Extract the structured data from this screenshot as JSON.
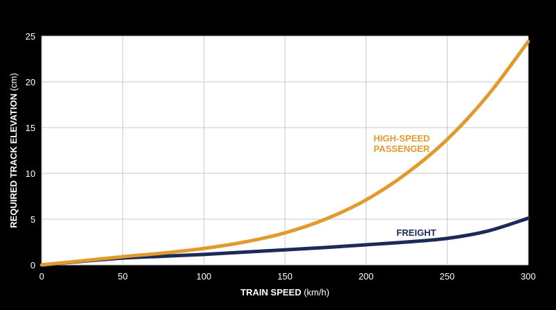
{
  "chart_data": {
    "type": "line",
    "xlabel": "TRAIN SPEED",
    "xlabel_unit": "(km/h)",
    "ylabel": "REQUIRED TRACK ELEVATION",
    "ylabel_unit": "(cm)",
    "xlim": [
      0,
      300
    ],
    "ylim": [
      0,
      25
    ],
    "xticks": [
      "0",
      "50",
      "100",
      "150",
      "200",
      "250",
      "300"
    ],
    "yticks": [
      "0",
      "5",
      "10",
      "15",
      "20",
      "25"
    ],
    "grid": true,
    "legend": "none",
    "series": [
      {
        "name": "HIGH-SPEED PASSENGER",
        "label_lines": [
          "HIGH-SPEED",
          "PASSENGER"
        ],
        "color": "#e09a2e",
        "x": [
          0,
          25,
          50,
          75,
          100,
          125,
          150,
          175,
          200,
          225,
          250,
          275,
          300
        ],
        "y": [
          0,
          0.45,
          0.9,
          1.3,
          1.8,
          2.5,
          3.5,
          5.0,
          7.1,
          10.0,
          13.7,
          18.5,
          24.4
        ]
      },
      {
        "name": "FREIGHT",
        "label_lines": [
          "FREIGHT"
        ],
        "color": "#1c2a57",
        "x": [
          0,
          25,
          50,
          75,
          100,
          125,
          150,
          175,
          200,
          225,
          250,
          275,
          300
        ],
        "y": [
          0,
          0.4,
          0.75,
          0.95,
          1.15,
          1.4,
          1.65,
          1.9,
          2.2,
          2.5,
          2.9,
          3.7,
          5.1
        ]
      }
    ]
  }
}
